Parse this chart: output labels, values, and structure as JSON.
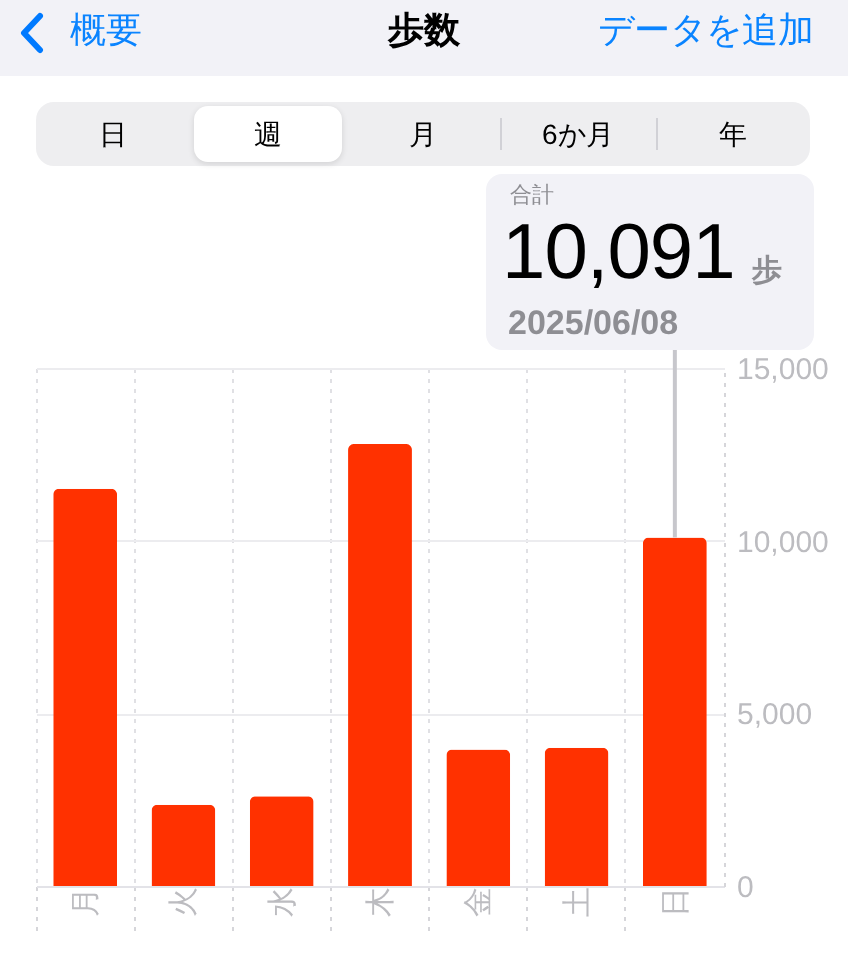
{
  "chart_data": {
    "type": "bar",
    "title": "歩数",
    "categories": [
      "月",
      "火",
      "水",
      "木",
      "金",
      "土",
      "日"
    ],
    "values": [
      11500,
      2350,
      2600,
      12800,
      3950,
      4000,
      10091
    ],
    "color": "#ff3100",
    "ylim": [
      0,
      15000
    ],
    "yticks": [
      0,
      {
        "value": 5000,
        "label": "5,000"
      },
      {
        "value": 10000,
        "label": "10,000"
      },
      {
        "value": 15000,
        "label": "15,000"
      }
    ],
    "grid": true,
    "annotations": [
      "概要",
      "データを追加",
      "日",
      "週",
      "月",
      "6か月",
      "年",
      "合計",
      {
        "text": "10,091",
        "x": "日",
        "y": 10091
      },
      "歩",
      "2025/06/08"
    ]
  }
}
